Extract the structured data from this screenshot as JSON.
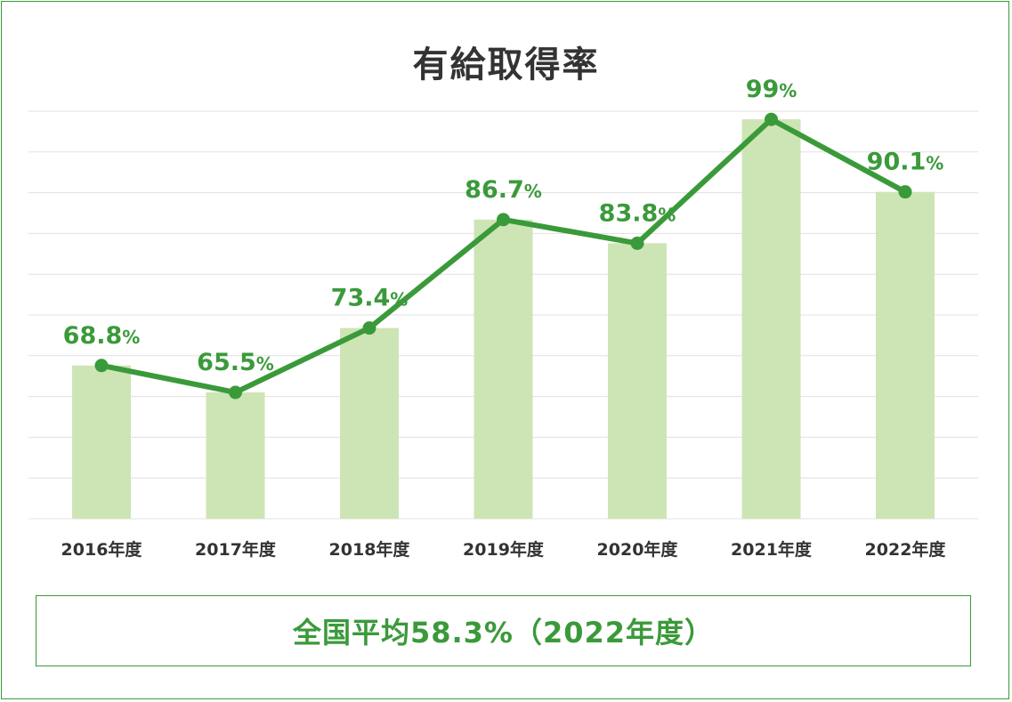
{
  "title": "有給取得率",
  "average_note": "全国平均58.3%（2022年度）",
  "colors": {
    "line": "#3a9a3a",
    "bar": "#cde5b5",
    "grid": "#e0e0e0",
    "label": "#3a9a3a",
    "axis_text": "#333333",
    "border": "#3a9a3a"
  },
  "chart_data": {
    "type": "bar+line",
    "title": "有給取得率",
    "categories": [
      "2016年度",
      "2017年度",
      "2018年度",
      "2019年度",
      "2020年度",
      "2021年度",
      "2022年度"
    ],
    "series": [
      {
        "type": "bar",
        "values": [
          68.8,
          65.5,
          73.4,
          86.7,
          83.8,
          99,
          90.1
        ]
      },
      {
        "type": "line",
        "values": [
          68.8,
          65.5,
          73.4,
          86.7,
          83.8,
          99,
          90.1
        ]
      }
    ],
    "data_labels": [
      "68.8",
      "65.5",
      "73.4",
      "86.7",
      "83.8",
      "99",
      "90.1"
    ],
    "data_label_unit": "%",
    "ylim": [
      50,
      100
    ],
    "grid": true,
    "legend": "none"
  }
}
